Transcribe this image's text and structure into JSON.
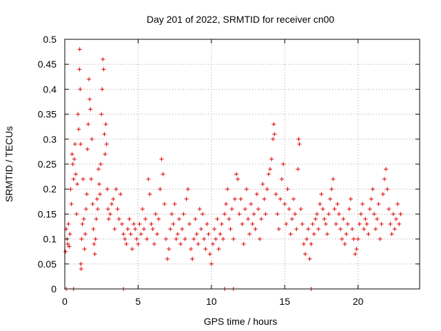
{
  "chart_data": {
    "type": "scatter",
    "title": "Day 201 of 2022, SRMTID for receiver cn00",
    "xlabel": "GPS time / hours",
    "ylabel": "SRMTID / TECUs",
    "xlim": [
      0,
      24.2
    ],
    "ylim": [
      0,
      0.5
    ],
    "x_ticks": [
      0,
      5,
      10,
      15,
      20
    ],
    "x_tick_labels": [
      "0",
      "5",
      "10",
      "15",
      "20"
    ],
    "y_ticks": [
      0,
      0.05,
      0.1,
      0.15,
      0.2,
      0.25,
      0.3,
      0.35,
      0.4,
      0.45,
      0.5
    ],
    "y_tick_labels": [
      "0",
      "0.05",
      "0.1",
      "0.15",
      "0.2",
      "0.25",
      "0.3",
      "0.35",
      "0.4",
      "0.45",
      "0.5"
    ],
    "grid": true,
    "marker": "plus",
    "color": "#dd0000",
    "series": [
      {
        "name": "SRMTID",
        "points": [
          [
            0.05,
            0.075
          ],
          [
            0.1,
            0.12
          ],
          [
            0.15,
            0.1
          ],
          [
            0.2,
            0.09
          ],
          [
            0.25,
            0.13
          ],
          [
            0.3,
            0.085
          ],
          [
            0.35,
            0.11
          ],
          [
            0.4,
            0.2
          ],
          [
            0.45,
            0.17
          ],
          [
            0.5,
            0.27
          ],
          [
            0.55,
            0.25
          ],
          [
            0.6,
            0.22
          ],
          [
            0.65,
            0.26
          ],
          [
            0.7,
            0.29
          ],
          [
            0.75,
            0.23
          ],
          [
            0.8,
            0.15
          ],
          [
            0.85,
            0.21
          ],
          [
            0.9,
            0.35
          ],
          [
            0.95,
            0.32
          ],
          [
            1.0,
            0.44
          ],
          [
            1.02,
            0.48
          ],
          [
            1.05,
            0.4
          ],
          [
            1.08,
            0.29
          ],
          [
            1.1,
            0.05
          ],
          [
            1.12,
            0.04
          ],
          [
            1.15,
            0.1
          ],
          [
            1.2,
            0.13
          ],
          [
            1.25,
            0.22
          ],
          [
            1.3,
            0.14
          ],
          [
            1.35,
            0.08
          ],
          [
            1.4,
            0.11
          ],
          [
            1.45,
            0.16
          ],
          [
            1.5,
            0.19
          ],
          [
            1.55,
            0.28
          ],
          [
            1.6,
            0.33
          ],
          [
            1.65,
            0.42
          ],
          [
            1.7,
            0.38
          ],
          [
            1.75,
            0.36
          ],
          [
            1.8,
            0.22
          ],
          [
            1.85,
            0.3
          ],
          [
            1.9,
            0.17
          ],
          [
            1.95,
            0.12
          ],
          [
            2.0,
            0.09
          ],
          [
            2.05,
            0.07
          ],
          [
            2.1,
            0.1
          ],
          [
            2.15,
            0.14
          ],
          [
            2.2,
            0.18
          ],
          [
            2.25,
            0.16
          ],
          [
            2.3,
            0.24
          ],
          [
            2.35,
            0.21
          ],
          [
            2.4,
            0.19
          ],
          [
            2.45,
            0.25
          ],
          [
            2.5,
            0.35
          ],
          [
            2.55,
            0.4
          ],
          [
            2.6,
            0.46
          ],
          [
            2.65,
            0.44
          ],
          [
            2.7,
            0.31
          ],
          [
            2.75,
            0.27
          ],
          [
            2.8,
            0.33
          ],
          [
            2.85,
            0.29
          ],
          [
            2.9,
            0.2
          ],
          [
            2.95,
            0.16
          ],
          [
            3.0,
            0.14
          ],
          [
            3.1,
            0.15
          ],
          [
            3.2,
            0.17
          ],
          [
            3.3,
            0.18
          ],
          [
            3.4,
            0.12
          ],
          [
            3.5,
            0.2
          ],
          [
            3.6,
            0.16
          ],
          [
            3.7,
            0.14
          ],
          [
            3.8,
            0.19
          ],
          [
            3.9,
            0.13
          ],
          [
            4.0,
            0.11
          ],
          [
            4.1,
            0.1
          ],
          [
            4.2,
            0.09
          ],
          [
            4.3,
            0.12
          ],
          [
            4.4,
            0.14
          ],
          [
            4.5,
            0.11
          ],
          [
            4.6,
            0.08
          ],
          [
            4.7,
            0.13
          ],
          [
            4.8,
            0.12
          ],
          [
            4.9,
            0.1
          ],
          [
            5.0,
            0.09
          ],
          [
            5.1,
            0.13
          ],
          [
            5.2,
            0.11
          ],
          [
            5.3,
            0.16
          ],
          [
            5.4,
            0.12
          ],
          [
            5.5,
            0.14
          ],
          [
            5.6,
            0.1
          ],
          [
            5.7,
            0.22
          ],
          [
            5.8,
            0.19
          ],
          [
            5.9,
            0.13
          ],
          [
            6.0,
            0.12
          ],
          [
            6.1,
            0.09
          ],
          [
            6.2,
            0.15
          ],
          [
            6.3,
            0.11
          ],
          [
            6.4,
            0.14
          ],
          [
            6.5,
            0.2
          ],
          [
            6.6,
            0.26
          ],
          [
            6.7,
            0.23
          ],
          [
            6.8,
            0.17
          ],
          [
            6.9,
            0.1
          ],
          [
            7.0,
            0.06
          ],
          [
            7.1,
            0.08
          ],
          [
            7.2,
            0.12
          ],
          [
            7.3,
            0.15
          ],
          [
            7.4,
            0.13
          ],
          [
            7.5,
            0.17
          ],
          [
            7.6,
            0.1
          ],
          [
            7.7,
            0.11
          ],
          [
            7.8,
            0.14
          ],
          [
            7.9,
            0.09
          ],
          [
            8.0,
            0.12
          ],
          [
            8.1,
            0.15
          ],
          [
            8.2,
            0.1
          ],
          [
            8.3,
            0.18
          ],
          [
            8.4,
            0.2
          ],
          [
            8.5,
            0.13
          ],
          [
            8.6,
            0.08
          ],
          [
            8.7,
            0.06
          ],
          [
            8.8,
            0.1
          ],
          [
            8.9,
            0.14
          ],
          [
            9.0,
            0.11
          ],
          [
            9.1,
            0.09
          ],
          [
            9.2,
            0.16
          ],
          [
            9.3,
            0.12
          ],
          [
            9.4,
            0.15
          ],
          [
            9.5,
            0.1
          ],
          [
            9.6,
            0.08
          ],
          [
            9.7,
            0.13
          ],
          [
            9.8,
            0.11
          ],
          [
            9.9,
            0.07
          ],
          [
            10.0,
            0.05
          ],
          [
            10.1,
            0.09
          ],
          [
            10.2,
            0.12
          ],
          [
            10.3,
            0.1
          ],
          [
            10.4,
            0.14
          ],
          [
            10.5,
            0.08
          ],
          [
            10.6,
            0.11
          ],
          [
            10.7,
            0.13
          ],
          [
            10.8,
            0.1
          ],
          [
            10.9,
            0.15
          ],
          [
            11.0,
            0.17
          ],
          [
            11.1,
            0.2
          ],
          [
            11.2,
            0.14
          ],
          [
            11.3,
            0.12
          ],
          [
            11.4,
            0.16
          ],
          [
            11.5,
            0.1
          ],
          [
            11.6,
            0.18
          ],
          [
            11.7,
            0.23
          ],
          [
            11.8,
            0.22
          ],
          [
            11.9,
            0.15
          ],
          [
            12.0,
            0.18
          ],
          [
            12.1,
            0.13
          ],
          [
            12.2,
            0.09
          ],
          [
            12.3,
            0.16
          ],
          [
            12.4,
            0.2
          ],
          [
            12.5,
            0.14
          ],
          [
            12.6,
            0.11
          ],
          [
            12.7,
            0.17
          ],
          [
            12.8,
            0.13
          ],
          [
            12.9,
            0.15
          ],
          [
            13.0,
            0.12
          ],
          [
            13.1,
            0.19
          ],
          [
            13.2,
            0.16
          ],
          [
            13.3,
            0.1
          ],
          [
            13.4,
            0.14
          ],
          [
            13.5,
            0.21
          ],
          [
            13.6,
            0.18
          ],
          [
            13.7,
            0.15
          ],
          [
            13.8,
            0.2
          ],
          [
            13.9,
            0.23
          ],
          [
            14.0,
            0.24
          ],
          [
            14.1,
            0.26
          ],
          [
            14.2,
            0.3
          ],
          [
            14.25,
            0.33
          ],
          [
            14.3,
            0.31
          ],
          [
            14.4,
            0.19
          ],
          [
            14.5,
            0.15
          ],
          [
            14.6,
            0.12
          ],
          [
            14.7,
            0.18
          ],
          [
            14.8,
            0.22
          ],
          [
            14.9,
            0.25
          ],
          [
            15.0,
            0.17
          ],
          [
            15.1,
            0.13
          ],
          [
            15.2,
            0.2
          ],
          [
            15.3,
            0.16
          ],
          [
            15.4,
            0.11
          ],
          [
            15.5,
            0.14
          ],
          [
            15.6,
            0.18
          ],
          [
            15.7,
            0.15
          ],
          [
            15.8,
            0.12
          ],
          [
            15.9,
            0.24
          ],
          [
            15.95,
            0.3
          ],
          [
            16.0,
            0.29
          ],
          [
            16.1,
            0.16
          ],
          [
            16.2,
            0.13
          ],
          [
            16.3,
            0.09
          ],
          [
            16.4,
            0.07
          ],
          [
            16.5,
            0.1
          ],
          [
            16.6,
            0.12
          ],
          [
            16.7,
            0.06
          ],
          [
            16.8,
            0.09
          ],
          [
            16.9,
            0.13
          ],
          [
            17.0,
            0.11
          ],
          [
            17.1,
            0.14
          ],
          [
            17.2,
            0.15
          ],
          [
            17.3,
            0.12
          ],
          [
            17.4,
            0.17
          ],
          [
            17.5,
            0.19
          ],
          [
            17.6,
            0.16
          ],
          [
            17.7,
            0.14
          ],
          [
            17.8,
            0.13
          ],
          [
            17.9,
            0.11
          ],
          [
            18.0,
            0.15
          ],
          [
            18.1,
            0.18
          ],
          [
            18.2,
            0.2
          ],
          [
            18.3,
            0.22
          ],
          [
            18.4,
            0.16
          ],
          [
            18.5,
            0.13
          ],
          [
            18.6,
            0.17
          ],
          [
            18.7,
            0.15
          ],
          [
            18.8,
            0.12
          ],
          [
            18.9,
            0.1
          ],
          [
            19.0,
            0.14
          ],
          [
            19.1,
            0.09
          ],
          [
            19.2,
            0.11
          ],
          [
            19.3,
            0.13
          ],
          [
            19.4,
            0.16
          ],
          [
            19.5,
            0.18
          ],
          [
            19.6,
            0.12
          ],
          [
            19.7,
            0.1
          ],
          [
            19.8,
            0.07
          ],
          [
            19.9,
            0.08
          ],
          [
            20.0,
            0.1
          ],
          [
            20.1,
            0.13
          ],
          [
            20.2,
            0.15
          ],
          [
            20.3,
            0.17
          ],
          [
            20.4,
            0.12
          ],
          [
            20.5,
            0.14
          ],
          [
            20.6,
            0.13
          ],
          [
            20.7,
            0.11
          ],
          [
            20.8,
            0.16
          ],
          [
            20.9,
            0.18
          ],
          [
            21.0,
            0.2
          ],
          [
            21.1,
            0.15
          ],
          [
            21.2,
            0.12
          ],
          [
            21.3,
            0.14
          ],
          [
            21.4,
            0.17
          ],
          [
            21.5,
            0.1
          ],
          [
            21.6,
            0.13
          ],
          [
            21.7,
            0.19
          ],
          [
            21.8,
            0.22
          ],
          [
            21.9,
            0.24
          ],
          [
            22.0,
            0.2
          ],
          [
            22.1,
            0.16
          ],
          [
            22.2,
            0.13
          ],
          [
            22.3,
            0.11
          ],
          [
            22.4,
            0.15
          ],
          [
            22.5,
            0.12
          ],
          [
            22.6,
            0.14
          ],
          [
            22.7,
            0.17
          ],
          [
            22.8,
            0.13
          ],
          [
            22.9,
            0.15
          ],
          [
            0.1,
            0.0
          ],
          [
            0.6,
            0.0
          ],
          [
            4.0,
            0.0
          ],
          [
            10.9,
            0.0
          ],
          [
            11.5,
            0.0
          ],
          [
            16.8,
            0.0
          ]
        ]
      }
    ]
  }
}
